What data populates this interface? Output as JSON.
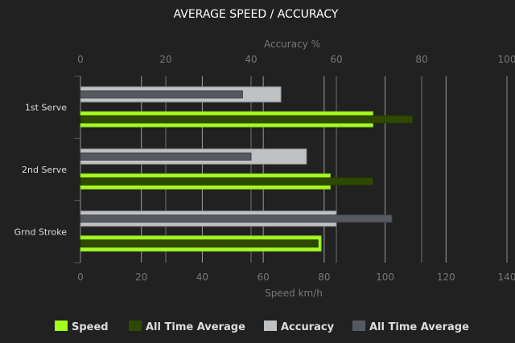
{
  "chart_data": {
    "type": "bar",
    "orientation": "horizontal",
    "title": "AVERAGE SPEED / ACCURACY",
    "categories": [
      "1st Serve",
      "2nd Serve",
      "Grnd Stroke"
    ],
    "x_bottom": {
      "label": "Speed km/h",
      "range": [
        0,
        140
      ],
      "ticks": [
        0,
        20,
        40,
        60,
        80,
        100,
        120,
        140
      ]
    },
    "x_top": {
      "label": "Accuracy %",
      "range": [
        0,
        100
      ],
      "ticks": [
        0,
        20,
        40,
        60,
        80,
        100
      ]
    },
    "series": [
      {
        "name": "Speed",
        "axis": "bottom",
        "color": "#a4ff1c",
        "values": [
          96,
          82,
          79
        ]
      },
      {
        "name": "All Time Average",
        "axis": "bottom",
        "color": "#2f4a00",
        "values": [
          109,
          96,
          78
        ]
      },
      {
        "name": "Accuracy",
        "axis": "top",
        "color": "#bfc2c4",
        "values": [
          47,
          53,
          60
        ]
      },
      {
        "name": "All Time Average",
        "axis": "top",
        "color": "#555a60",
        "values": [
          38,
          40,
          73
        ]
      }
    ],
    "legend": "bottom",
    "grid": true
  }
}
